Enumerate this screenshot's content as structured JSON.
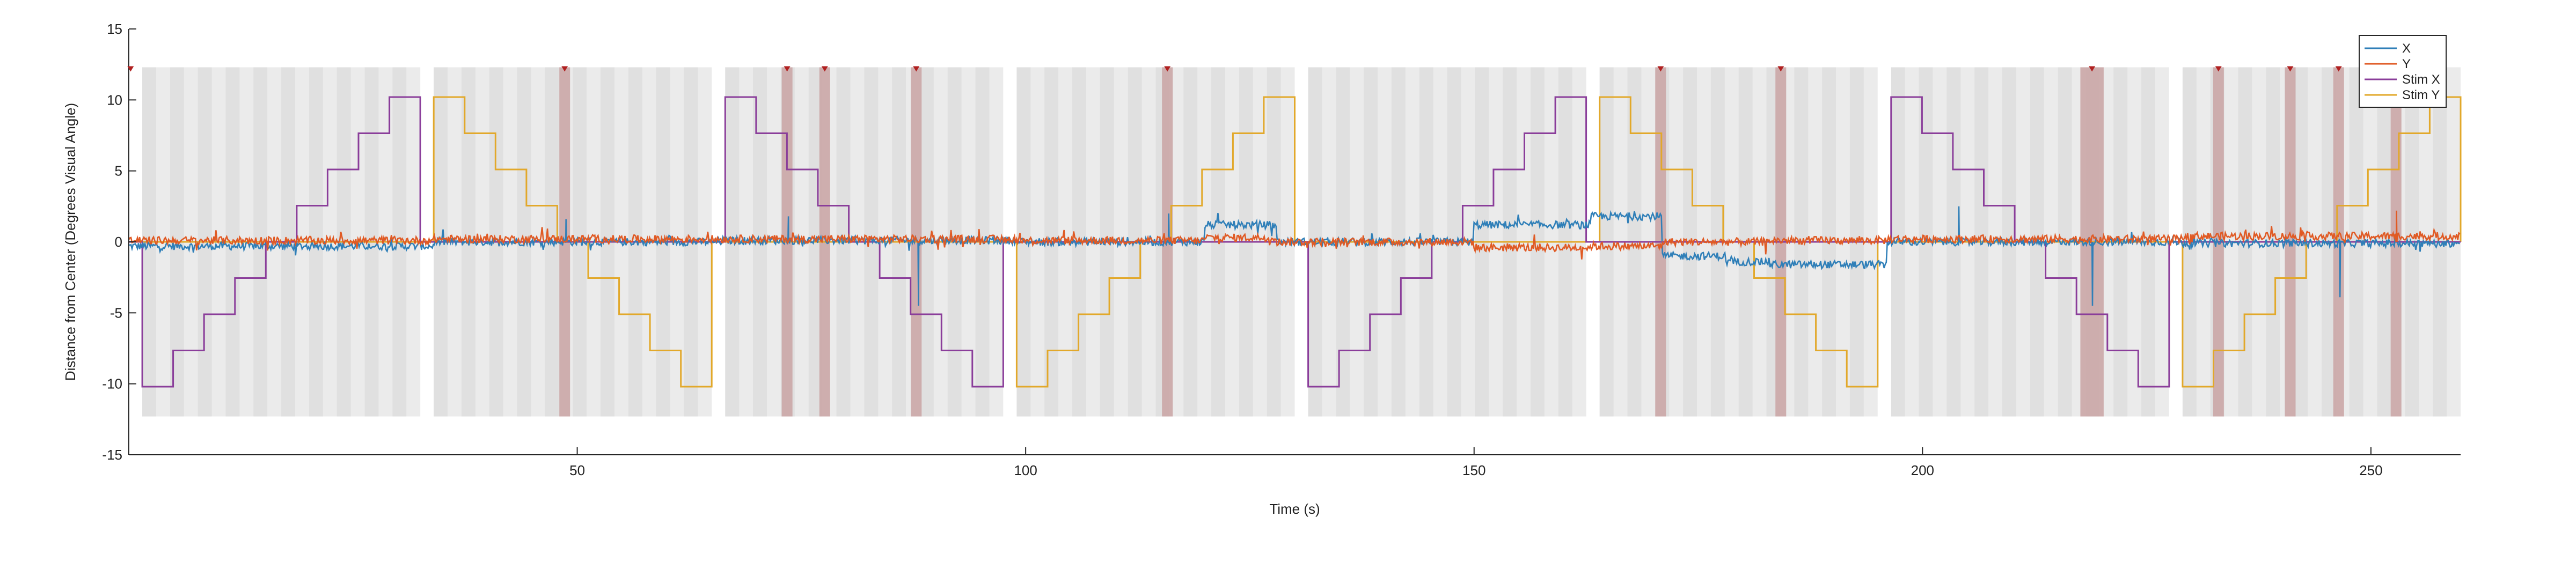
{
  "chart_data": {
    "type": "line",
    "title": "",
    "xlabel": "Time (s)",
    "ylabel": "Distance from Center (Degrees Visual Angle)",
    "xlim": [
      0,
      260
    ],
    "ylim": [
      -15,
      15
    ],
    "xticks": [
      50,
      100,
      150,
      200,
      250
    ],
    "yticks": [
      -15,
      -10,
      -5,
      0,
      5,
      10,
      15
    ],
    "grid": false,
    "legend": {
      "placement": "top-right",
      "entries": [
        "X",
        "Y",
        "Stim X",
        "Stim Y"
      ]
    },
    "colors": {
      "X": "#2f7fb8",
      "Y": "#e05a24",
      "Stim X": "#8a3d9a",
      "Stim Y": "#e2a82a",
      "background_band": "#ebebeb",
      "background_stripe": "#e0e0e0",
      "event_band": "#c9a3a3",
      "event_marker": "#b02020"
    },
    "blocks": [
      {
        "start": 1.5,
        "end": 32.5,
        "stim": "Stim X",
        "direction": "up"
      },
      {
        "start": 34.0,
        "end": 65.0,
        "stim": "Stim Y",
        "direction": "down"
      },
      {
        "start": 66.5,
        "end": 97.5,
        "stim": "Stim X",
        "direction": "down"
      },
      {
        "start": 99.0,
        "end": 130.0,
        "stim": "Stim Y",
        "direction": "up"
      },
      {
        "start": 131.5,
        "end": 162.5,
        "stim": "Stim X",
        "direction": "up"
      },
      {
        "start": 164.0,
        "end": 195.0,
        "stim": "Stim Y",
        "direction": "down"
      },
      {
        "start": 196.5,
        "end": 227.5,
        "stim": "Stim X",
        "direction": "down"
      },
      {
        "start": 229.0,
        "end": 260.0,
        "stim": "Stim Y",
        "direction": "up"
      }
    ],
    "event_bands": [
      {
        "start": 48.0,
        "end": 49.2
      },
      {
        "start": 72.8,
        "end": 74.0
      },
      {
        "start": 77.0,
        "end": 78.2
      },
      {
        "start": 87.2,
        "end": 88.4
      },
      {
        "start": 115.2,
        "end": 116.4
      },
      {
        "start": 170.2,
        "end": 171.4
      },
      {
        "start": 183.6,
        "end": 184.8
      },
      {
        "start": 217.6,
        "end": 220.2
      },
      {
        "start": 232.4,
        "end": 233.6
      },
      {
        "start": 240.4,
        "end": 241.6
      },
      {
        "start": 245.8,
        "end": 247.0
      },
      {
        "start": 252.2,
        "end": 253.4
      }
    ],
    "event_markers": [
      0.2,
      48.6,
      73.4,
      77.6,
      87.8,
      115.8,
      170.8,
      184.2,
      218.9,
      233.0,
      241.0,
      246.4,
      252.8
    ],
    "gaze_segments": [
      {
        "start": 0,
        "end": 34,
        "x": -0.3,
        "y": 0.1
      },
      {
        "start": 34,
        "end": 66,
        "x": 0.0,
        "y": 0.2
      },
      {
        "start": 66,
        "end": 99,
        "x": 0.1,
        "y": 0.2
      },
      {
        "start": 99,
        "end": 120,
        "x": 0.0,
        "y": 0.1
      },
      {
        "start": 120,
        "end": 128,
        "x": 1.2,
        "y": 0.3
      },
      {
        "start": 128,
        "end": 150,
        "x": 0.0,
        "y": 0.0
      },
      {
        "start": 150,
        "end": 163,
        "x": 1.2,
        "y": -0.4
      },
      {
        "start": 163,
        "end": 171,
        "x": 1.8,
        "y": -0.3
      },
      {
        "start": 171,
        "end": 178,
        "x": -1.0,
        "y": 0.0
      },
      {
        "start": 178,
        "end": 183,
        "x": -1.4,
        "y": 0.0
      },
      {
        "start": 183,
        "end": 196,
        "x": -1.6,
        "y": 0.1
      },
      {
        "start": 196,
        "end": 229,
        "x": 0.0,
        "y": 0.2
      },
      {
        "start": 229,
        "end": 260,
        "x": -0.1,
        "y": 0.4
      }
    ],
    "gaze_spikes": [
      {
        "series": "X",
        "t": 48.7,
        "value": 1.6
      },
      {
        "series": "X",
        "t": 73.5,
        "value": 1.8
      },
      {
        "series": "X",
        "t": 88.0,
        "value": -4.5
      },
      {
        "series": "X",
        "t": 115.9,
        "value": 2.0
      },
      {
        "series": "X",
        "t": 204.0,
        "value": 2.5
      },
      {
        "series": "X",
        "t": 218.9,
        "value": -4.5
      },
      {
        "series": "X",
        "t": 246.5,
        "value": -3.9
      },
      {
        "series": "Y",
        "t": 252.8,
        "value": 2.2
      }
    ]
  }
}
